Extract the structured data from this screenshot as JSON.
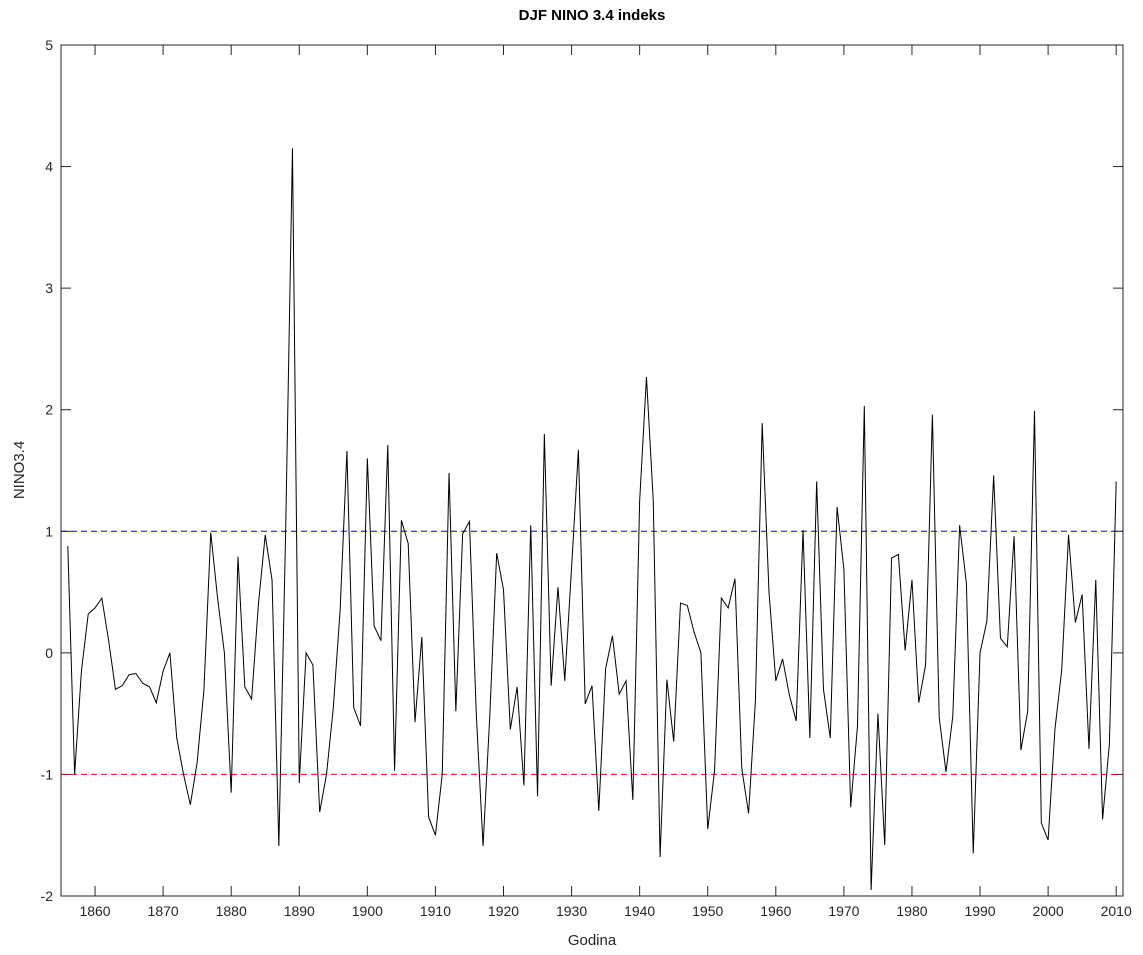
{
  "chart_data": {
    "type": "line",
    "title": "DJF NINO 3.4 indeks",
    "x_label": "Godina",
    "y_label": "NINO3.4",
    "x": [
      1856,
      1857,
      1858,
      1859,
      1860,
      1861,
      1862,
      1863,
      1864,
      1865,
      1866,
      1867,
      1868,
      1869,
      1870,
      1871,
      1872,
      1873,
      1874,
      1875,
      1876,
      1877,
      1878,
      1879,
      1880,
      1881,
      1882,
      1883,
      1884,
      1885,
      1886,
      1887,
      1888,
      1889,
      1890,
      1891,
      1892,
      1893,
      1894,
      1895,
      1896,
      1897,
      1898,
      1899,
      1900,
      1901,
      1902,
      1903,
      1904,
      1905,
      1906,
      1907,
      1908,
      1909,
      1910,
      1911,
      1912,
      1913,
      1914,
      1915,
      1916,
      1917,
      1918,
      1919,
      1920,
      1921,
      1922,
      1923,
      1924,
      1925,
      1926,
      1927,
      1928,
      1929,
      1930,
      1931,
      1932,
      1933,
      1934,
      1935,
      1936,
      1937,
      1938,
      1939,
      1940,
      1941,
      1942,
      1943,
      1944,
      1945,
      1946,
      1947,
      1948,
      1949,
      1950,
      1951,
      1952,
      1953,
      1954,
      1955,
      1956,
      1957,
      1958,
      1959,
      1960,
      1961,
      1962,
      1963,
      1964,
      1965,
      1966,
      1967,
      1968,
      1969,
      1970,
      1971,
      1972,
      1973,
      1974,
      1975,
      1976,
      1977,
      1978,
      1979,
      1980,
      1981,
      1982,
      1983,
      1984,
      1985,
      1986,
      1987,
      1988,
      1989,
      1990,
      1991,
      1992,
      1993,
      1994,
      1995,
      1996,
      1997,
      1998,
      1999,
      2000,
      2001,
      2002,
      2003,
      2004,
      2005,
      2006,
      2007,
      2008,
      2009,
      2010
    ],
    "series": [
      {
        "color": "#000000",
        "values": [
          0.88,
          -1.0,
          -0.15,
          0.32,
          0.37,
          0.45,
          0.1,
          -0.3,
          -0.27,
          -0.18,
          -0.17,
          -0.25,
          -0.28,
          -0.41,
          -0.15,
          0.0,
          -0.7,
          -1.0,
          -1.25,
          -0.9,
          -0.3,
          0.99,
          0.45,
          0.0,
          -1.15,
          0.79,
          -0.28,
          -0.38,
          0.4,
          0.97,
          0.6,
          -1.59,
          1.0,
          4.15,
          -1.07,
          0.0,
          -0.1,
          -1.31,
          -1.0,
          -0.45,
          0.35,
          1.66,
          -0.45,
          -0.6,
          1.6,
          0.22,
          0.1,
          1.71,
          -0.97,
          1.09,
          0.9,
          -0.57,
          0.13,
          -1.35,
          -1.5,
          -1.0,
          1.48,
          -0.48,
          0.98,
          1.08,
          -0.5,
          -1.59,
          -0.5,
          0.82,
          0.52,
          -0.63,
          -0.28,
          -1.09,
          1.05,
          -1.18,
          1.8,
          -0.27,
          0.54,
          -0.23,
          0.7,
          1.67,
          -0.42,
          -0.27,
          -1.3,
          -0.13,
          0.14,
          -0.34,
          -0.23,
          -1.21,
          1.25,
          2.27,
          1.25,
          -1.68,
          -0.22,
          -0.73,
          0.41,
          0.39,
          0.17,
          0.0,
          -1.45,
          -0.97,
          0.45,
          0.37,
          0.61,
          -0.95,
          -1.32,
          -0.4,
          1.89,
          0.5,
          -0.23,
          -0.05,
          -0.35,
          -0.56,
          1.01,
          -0.7,
          1.41,
          -0.3,
          -0.7,
          1.2,
          0.69,
          -1.27,
          -0.6,
          2.03,
          -1.95,
          -0.5,
          -1.58,
          0.78,
          0.81,
          0.02,
          0.6,
          -0.41,
          -0.1,
          1.96,
          -0.53,
          -0.98,
          -0.52,
          1.05,
          0.57,
          -1.65,
          0.0,
          0.26,
          1.46,
          0.12,
          0.05,
          0.96,
          -0.8,
          -0.48,
          1.99,
          -1.4,
          -1.54,
          -0.63,
          -0.14,
          0.97,
          0.25,
          0.48,
          -0.79,
          0.6,
          -1.37,
          -0.75,
          1.41
        ]
      }
    ],
    "reference_lines": [
      {
        "value": 1,
        "color": "#0000ff"
      },
      {
        "value": -1,
        "color": "#ff0000"
      }
    ],
    "xlim": [
      1855,
      2011
    ],
    "xticks": [
      1860,
      1870,
      1880,
      1890,
      1900,
      1910,
      1920,
      1930,
      1940,
      1950,
      1960,
      1970,
      1980,
      1990,
      2000,
      2010
    ],
    "ylim": [
      -2,
      5
    ],
    "yticks": [
      -2,
      -1,
      0,
      1,
      2,
      3,
      4,
      5
    ]
  }
}
